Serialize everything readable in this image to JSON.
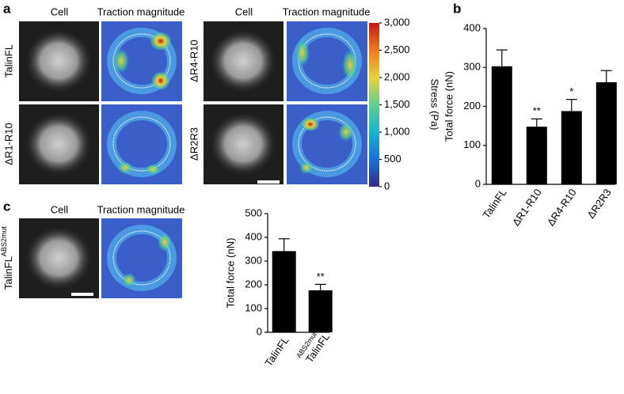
{
  "panels": {
    "a": {
      "letter": "a",
      "headers": [
        "Cell",
        "Traction magnitude",
        "Cell",
        "Traction magnitude"
      ],
      "rows": [
        "TalinFL",
        "ΔR1-R10",
        "ΔR4-R10",
        "ΔR2R3"
      ]
    },
    "b": {
      "letter": "b"
    },
    "c": {
      "letter": "c",
      "headers": [
        "Cell",
        "Traction magnitude"
      ],
      "row": "TalinFL",
      "row_sup": "ABS2mut"
    }
  },
  "chart_data": [
    {
      "type": "colorbar",
      "label": "Stress (Pa)",
      "ylim": [
        0,
        3000
      ],
      "yticks": [
        0,
        500,
        {
          "value": 1000,
          "label": "1,000"
        },
        {
          "value": 1500,
          "label": "1,500"
        },
        {
          "value": 2000,
          "label": "2,000"
        },
        {
          "value": 2500,
          "label": "2,500"
        },
        {
          "value": 3000,
          "label": "3,000"
        }
      ],
      "colors": [
        "#352a87",
        "#1a6fd8",
        "#18b4d0",
        "#5fcf8a",
        "#e8d23a",
        "#f07a1c",
        "#c21a14"
      ]
    },
    {
      "type": "bar",
      "ylabel": "Total force (nN)",
      "categories": [
        "TalinFL",
        "ΔR1-R10",
        "ΔR4-R10",
        "ΔR2R3"
      ],
      "values": [
        303,
        148,
        188,
        262
      ],
      "errors": [
        42,
        20,
        30,
        30
      ],
      "color": "#000000",
      "annotations": [
        {
          "x": "ΔR1-R10",
          "text": "**"
        },
        {
          "x": "ΔR4-R10",
          "text": "*"
        }
      ],
      "ylim": [
        0,
        400
      ],
      "yticks": [
        0,
        100,
        200,
        300,
        400
      ]
    },
    {
      "type": "bar",
      "ylabel": "Total force (nN)",
      "categories": [
        "TalinFL",
        "TalinFL"
      ],
      "category_sup": [
        null,
        "ABS2mut"
      ],
      "values": [
        342,
        177
      ],
      "errors": [
        52,
        25
      ],
      "color": "#000000",
      "annotations": [
        {
          "x": "TalinFL",
          "text": "**"
        }
      ],
      "ylim": [
        0,
        500
      ],
      "yticks": [
        0,
        100,
        200,
        300,
        400,
        500
      ]
    }
  ]
}
